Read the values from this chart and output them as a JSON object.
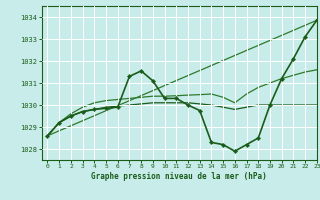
{
  "title": "Graphe pression niveau de la mer (hPa)",
  "background_color": "#c8ece9",
  "grid_color": "#ffffff",
  "line_color_dark": "#1a5c1a",
  "line_color_mid": "#2d7a2d",
  "xlim": [
    -0.5,
    23
  ],
  "ylim": [
    1027.5,
    1034.5
  ],
  "yticks": [
    1028,
    1029,
    1030,
    1031,
    1032,
    1033,
    1034
  ],
  "xticks": [
    0,
    1,
    2,
    3,
    4,
    5,
    6,
    7,
    8,
    9,
    10,
    11,
    12,
    13,
    14,
    15,
    16,
    17,
    18,
    19,
    20,
    21,
    22,
    23
  ],
  "series": [
    {
      "x": [
        0,
        1,
        2,
        3,
        4,
        5,
        6,
        7,
        8,
        9,
        10,
        11,
        12,
        13,
        14,
        15,
        16,
        17,
        18,
        19,
        20,
        21,
        22,
        23
      ],
      "y": [
        1028.6,
        1029.2,
        1029.5,
        1029.7,
        1029.8,
        1029.85,
        1029.9,
        1031.3,
        1031.55,
        1031.1,
        1030.3,
        1030.3,
        1030.0,
        1029.75,
        1028.3,
        1028.2,
        1027.9,
        1028.2,
        1028.5,
        1030.0,
        1031.2,
        1032.1,
        1033.1,
        1033.85
      ],
      "color": "#1a5c1a",
      "linewidth": 1.2,
      "marker": "D",
      "markersize": 2.2
    },
    {
      "x": [
        0,
        23
      ],
      "y": [
        1028.6,
        1033.85
      ],
      "color": "#2d7a2d",
      "linewidth": 0.9,
      "marker": null,
      "markersize": 0
    },
    {
      "x": [
        0,
        1,
        2,
        3,
        4,
        5,
        6,
        7,
        8,
        9,
        10,
        11,
        12,
        13,
        14,
        15,
        16,
        17,
        18,
        19,
        20,
        21,
        22,
        23
      ],
      "y": [
        1028.6,
        1029.2,
        1029.6,
        1029.9,
        1030.1,
        1030.2,
        1030.25,
        1030.3,
        1030.35,
        1030.4,
        1030.4,
        1030.42,
        1030.45,
        1030.47,
        1030.5,
        1030.35,
        1030.1,
        1030.5,
        1030.8,
        1031.0,
        1031.2,
        1031.35,
        1031.5,
        1031.6
      ],
      "color": "#2d7a2d",
      "linewidth": 0.9,
      "marker": null,
      "markersize": 0
    },
    {
      "x": [
        0,
        1,
        2,
        3,
        4,
        5,
        6,
        7,
        8,
        9,
        10,
        11,
        12,
        13,
        14,
        15,
        16,
        17,
        18,
        19,
        20,
        21,
        22,
        23
      ],
      "y": [
        1028.6,
        1029.2,
        1029.5,
        1029.7,
        1029.8,
        1029.9,
        1029.95,
        1030.0,
        1030.05,
        1030.1,
        1030.1,
        1030.1,
        1030.1,
        1030.05,
        1030.0,
        1029.9,
        1029.8,
        1029.9,
        1030.0,
        1030.0,
        1030.0,
        1030.0,
        1030.0,
        1030.0
      ],
      "color": "#1a5c1a",
      "linewidth": 0.9,
      "marker": null,
      "markersize": 0
    }
  ]
}
